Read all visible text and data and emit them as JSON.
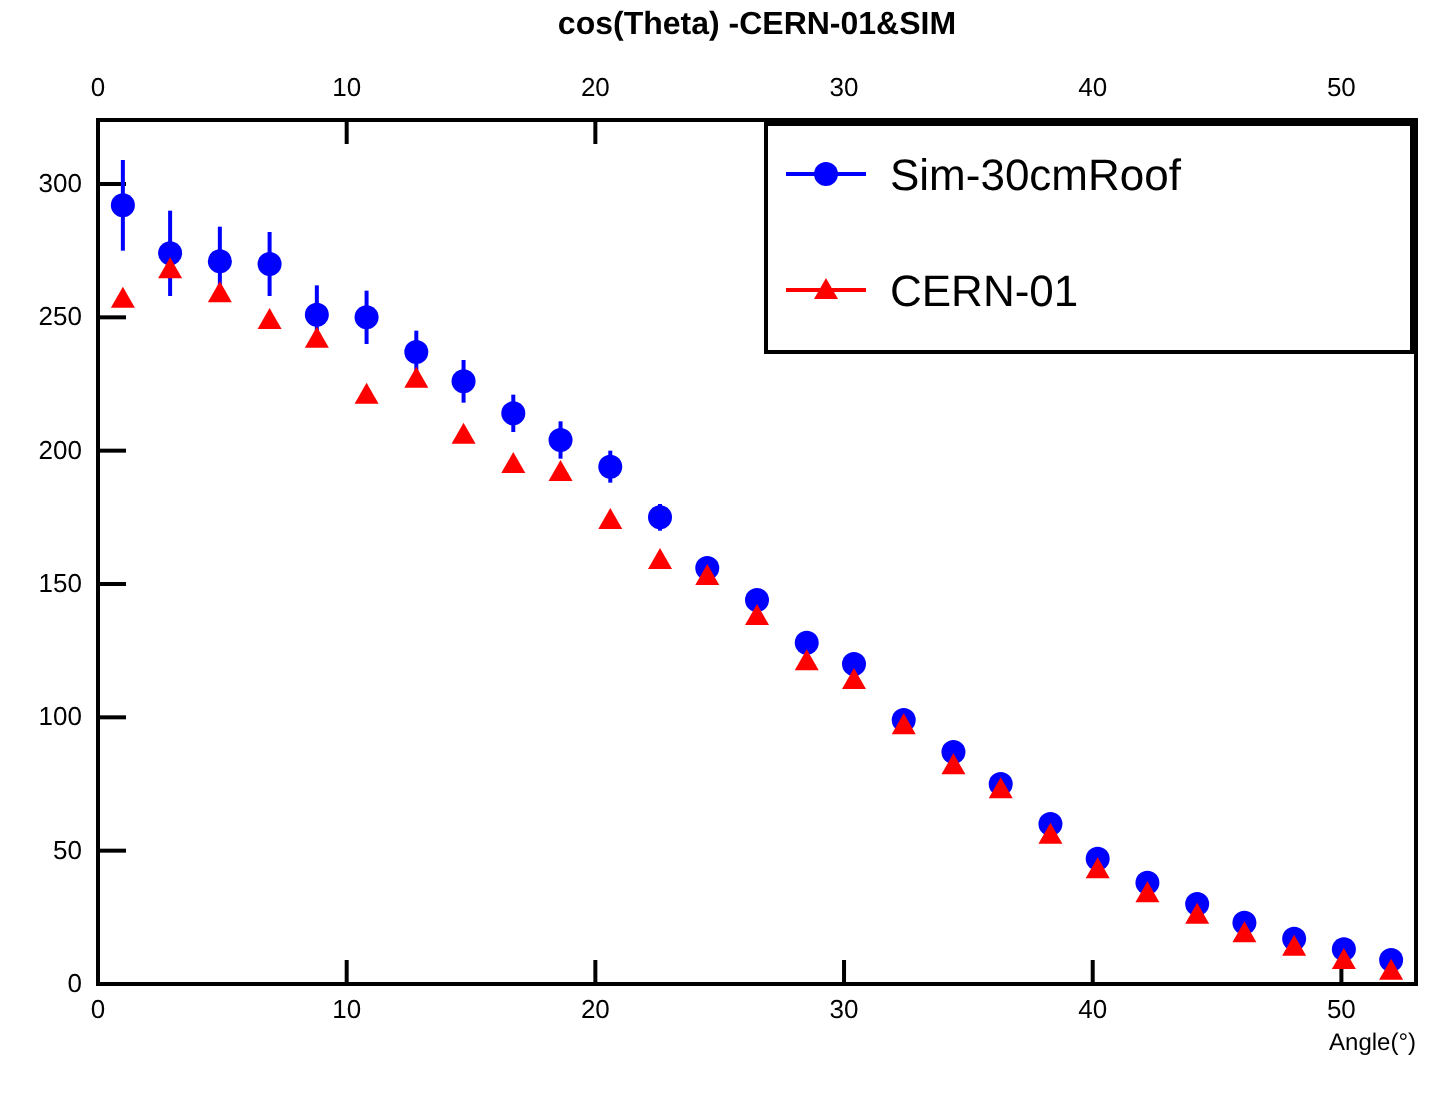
{
  "chart_data": {
    "type": "scatter",
    "title": "cos(Theta) -CERN-01&SIM",
    "xlabel": "Angle(°)",
    "xlim": [
      0,
      53
    ],
    "xticks": [
      0,
      10,
      20,
      30,
      40,
      50
    ],
    "x2lim": [
      0,
      53
    ],
    "x2ticks": [
      0,
      10,
      20,
      30,
      40,
      50
    ],
    "ylim": [
      0,
      324
    ],
    "yticks": [
      0,
      50,
      100,
      150,
      200,
      250,
      300
    ],
    "grid": false,
    "legend": "top right",
    "series": [
      {
        "name": "Sim-30cmRoof",
        "color": "#0000ff",
        "marker": "circle",
        "x": [
          1.0,
          2.9,
          4.9,
          6.9,
          8.8,
          10.8,
          12.8,
          14.7,
          16.7,
          18.6,
          20.6,
          22.6,
          24.5,
          26.5,
          28.5,
          30.4,
          32.4,
          34.4,
          36.3,
          38.3,
          40.2,
          42.2,
          44.2,
          46.1,
          48.1,
          50.1,
          52.0
        ],
        "values": [
          292,
          274,
          271,
          270,
          251,
          250,
          237,
          226,
          214,
          204,
          194,
          175,
          156,
          144,
          128,
          120,
          99,
          87,
          75,
          60,
          47,
          38,
          30,
          23,
          17,
          13,
          9
        ],
        "errors": [
          17,
          16,
          13,
          12,
          11,
          10,
          8,
          8,
          7,
          7,
          6,
          5,
          4,
          4,
          4,
          3,
          3,
          3,
          3,
          3,
          2,
          2,
          2,
          2,
          2,
          2,
          2
        ]
      },
      {
        "name": "CERN-01",
        "color": "#ff0000",
        "marker": "triangle",
        "x": [
          1.0,
          2.9,
          4.9,
          6.9,
          8.8,
          10.8,
          12.8,
          14.7,
          16.7,
          18.6,
          20.6,
          22.6,
          24.5,
          26.5,
          28.5,
          30.4,
          32.4,
          34.4,
          36.3,
          38.3,
          40.2,
          42.2,
          44.2,
          46.1,
          48.1,
          50.1,
          52.0
        ],
        "values": [
          257,
          268,
          259,
          249,
          242,
          221,
          227,
          206,
          195,
          192,
          174,
          159,
          153,
          138,
          121,
          114,
          97,
          82,
          73,
          56,
          43,
          34,
          26,
          19,
          14,
          9,
          5
        ]
      }
    ]
  }
}
